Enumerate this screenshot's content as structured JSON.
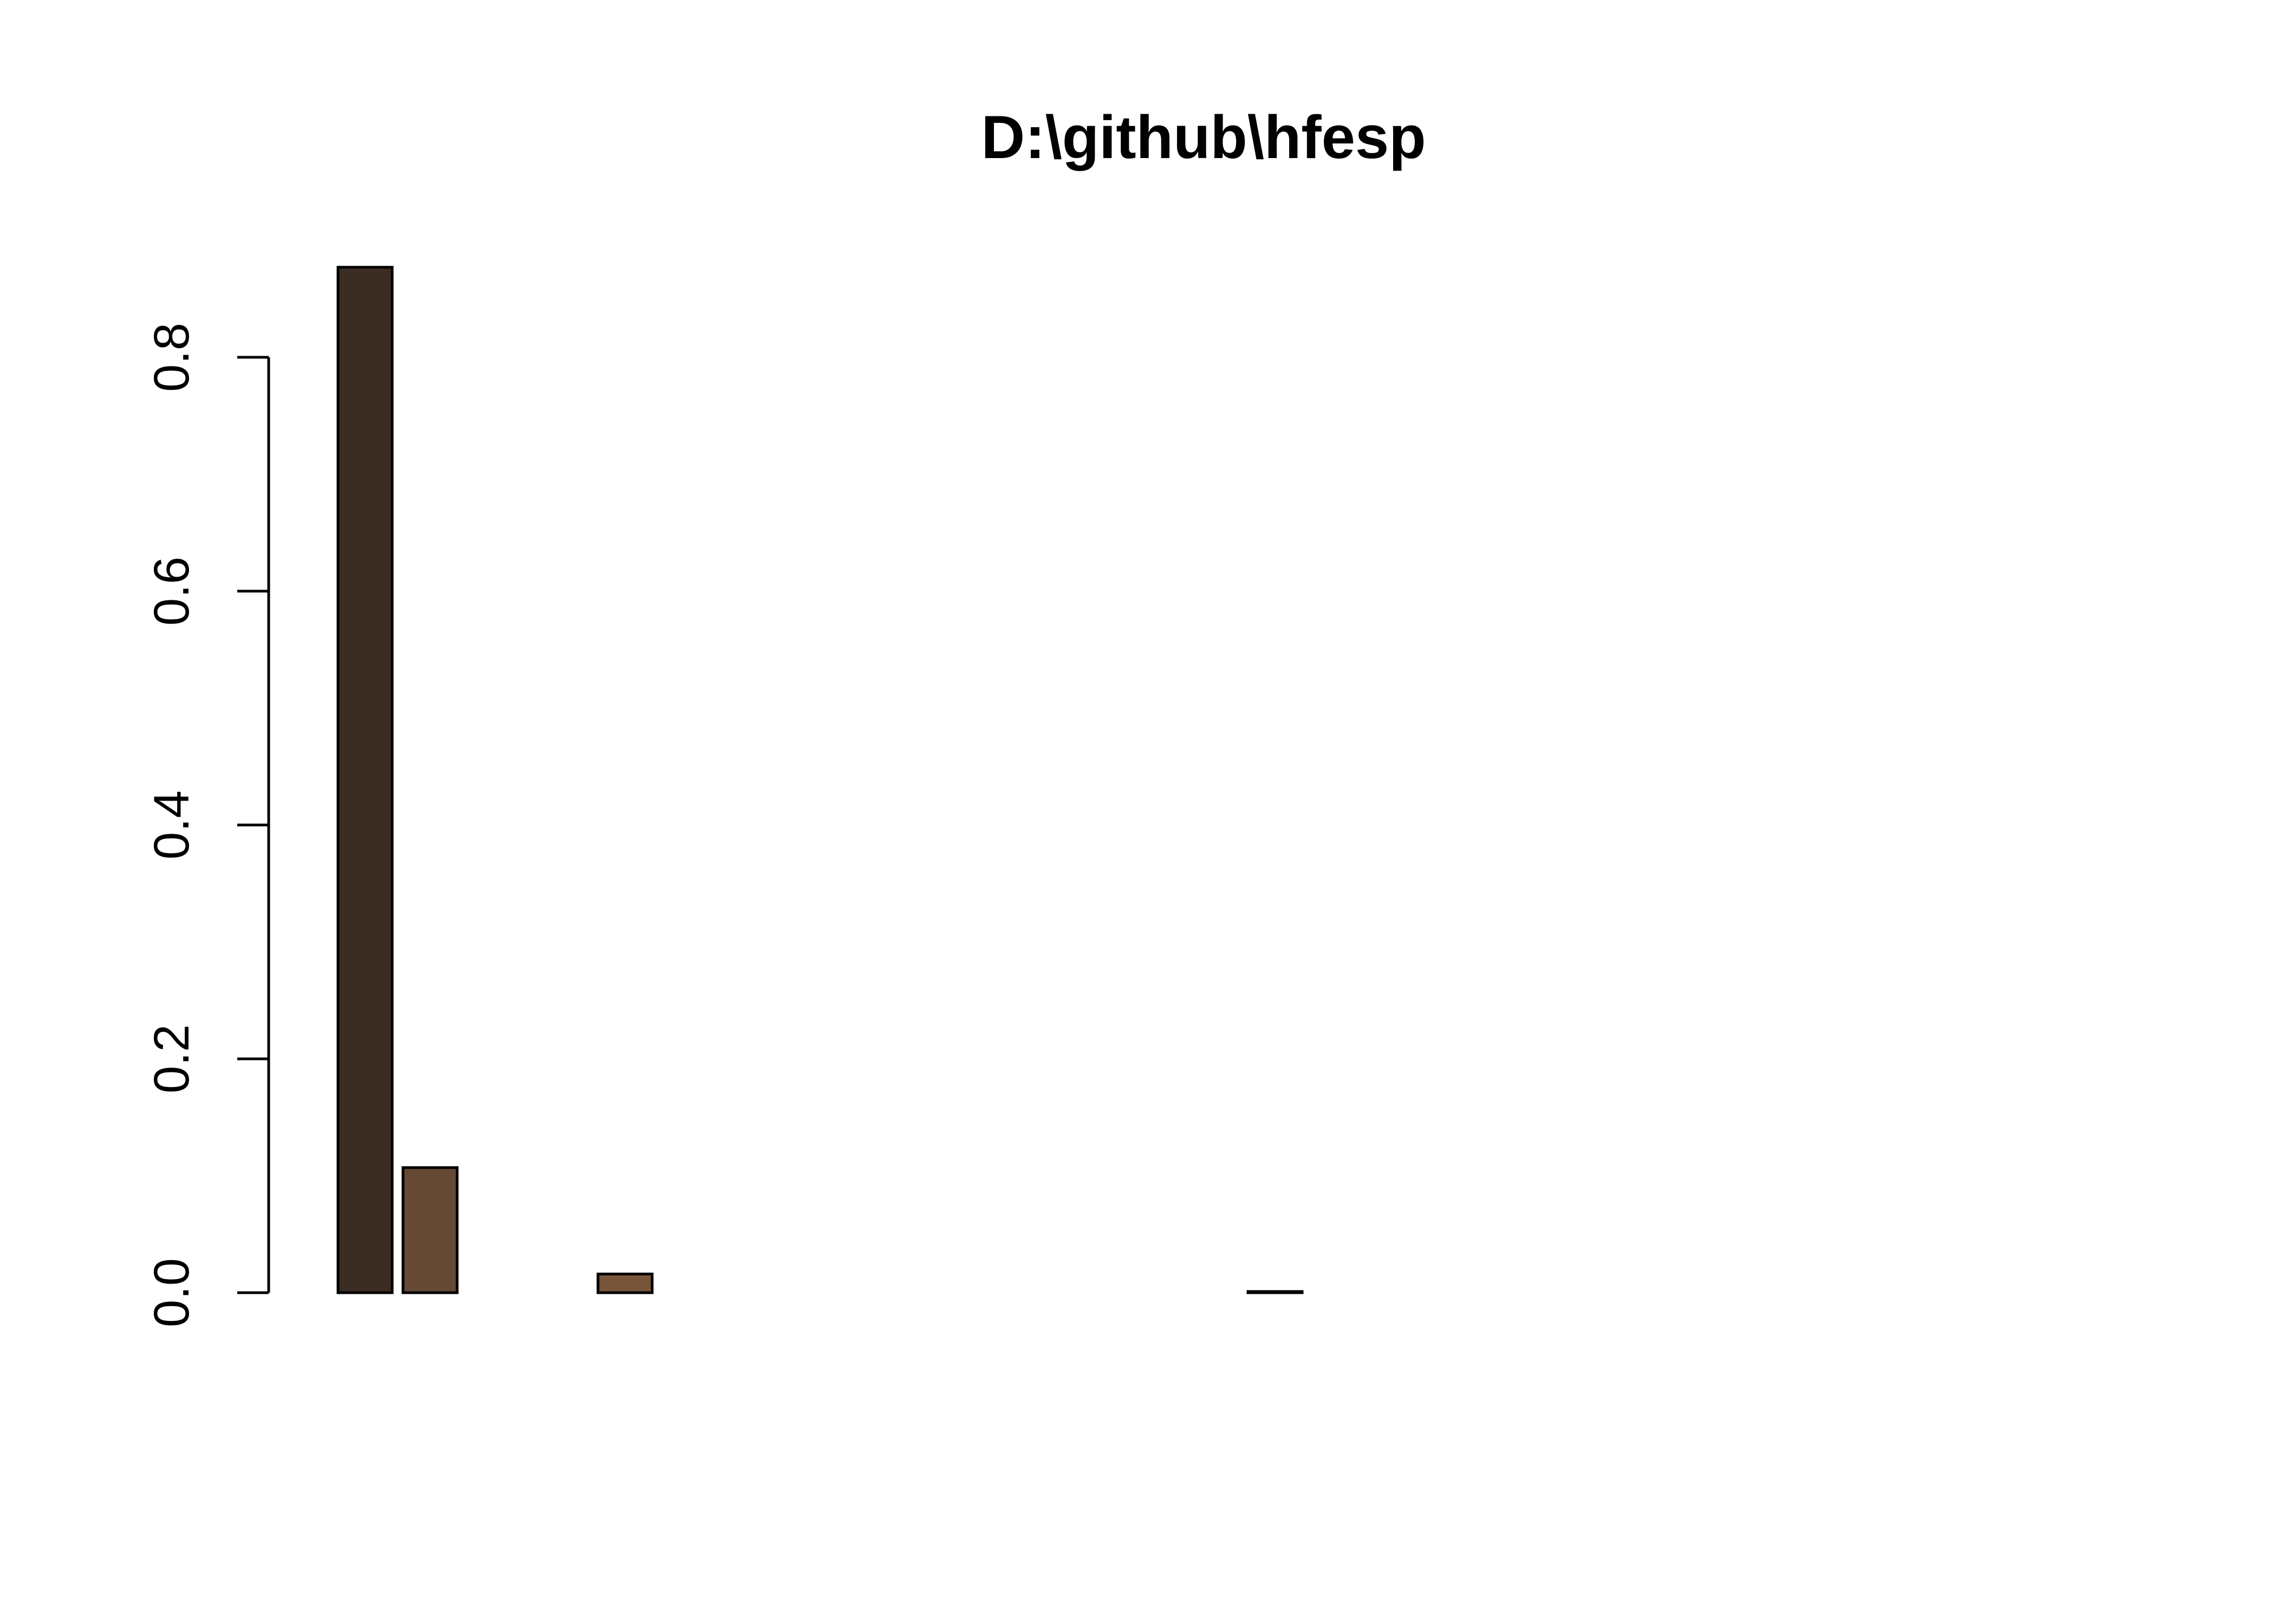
{
  "chart_data": {
    "type": "bar",
    "title": "D:\\github\\hfesp",
    "xlabel": "",
    "ylabel": "",
    "ylim": [
      0,
      0.88
    ],
    "yticks": [
      "0.0",
      "0.2",
      "0.4",
      "0.6",
      "0.8"
    ],
    "ytick_values": [
      0.0,
      0.2,
      0.4,
      0.6,
      0.8
    ],
    "grid": false,
    "legend": "none",
    "values": [
      0.877,
      0.107,
      0.0,
      0.0,
      0.016,
      0.0,
      0.0,
      0.0,
      0.0,
      0.0,
      0.0,
      0.0,
      0.0,
      0.0,
      0.001,
      0.0,
      0.0,
      0.0,
      0.0,
      0.0,
      0.0,
      0.0,
      0.0,
      0.0,
      0.0,
      0.0,
      0.0,
      0.0
    ],
    "colors": [
      "#3b2d24",
      "#654935",
      "#6a4d36",
      "#6f5038",
      "#76553a",
      "#7b593c",
      "#805c3e",
      "#855f40",
      "#8a6342",
      "#8f6644",
      "#946946",
      "#996d48",
      "#9e704a",
      "#a3734c",
      "#a8764e",
      "#ad7a50",
      "#b27d52",
      "#b78054",
      "#bc8356",
      "#c18758",
      "#c68a5a",
      "#cb8d5c",
      "#d0905e",
      "#d59360",
      "#da9762",
      "#df9a64",
      "#e49d66",
      "#e9a068"
    ]
  }
}
